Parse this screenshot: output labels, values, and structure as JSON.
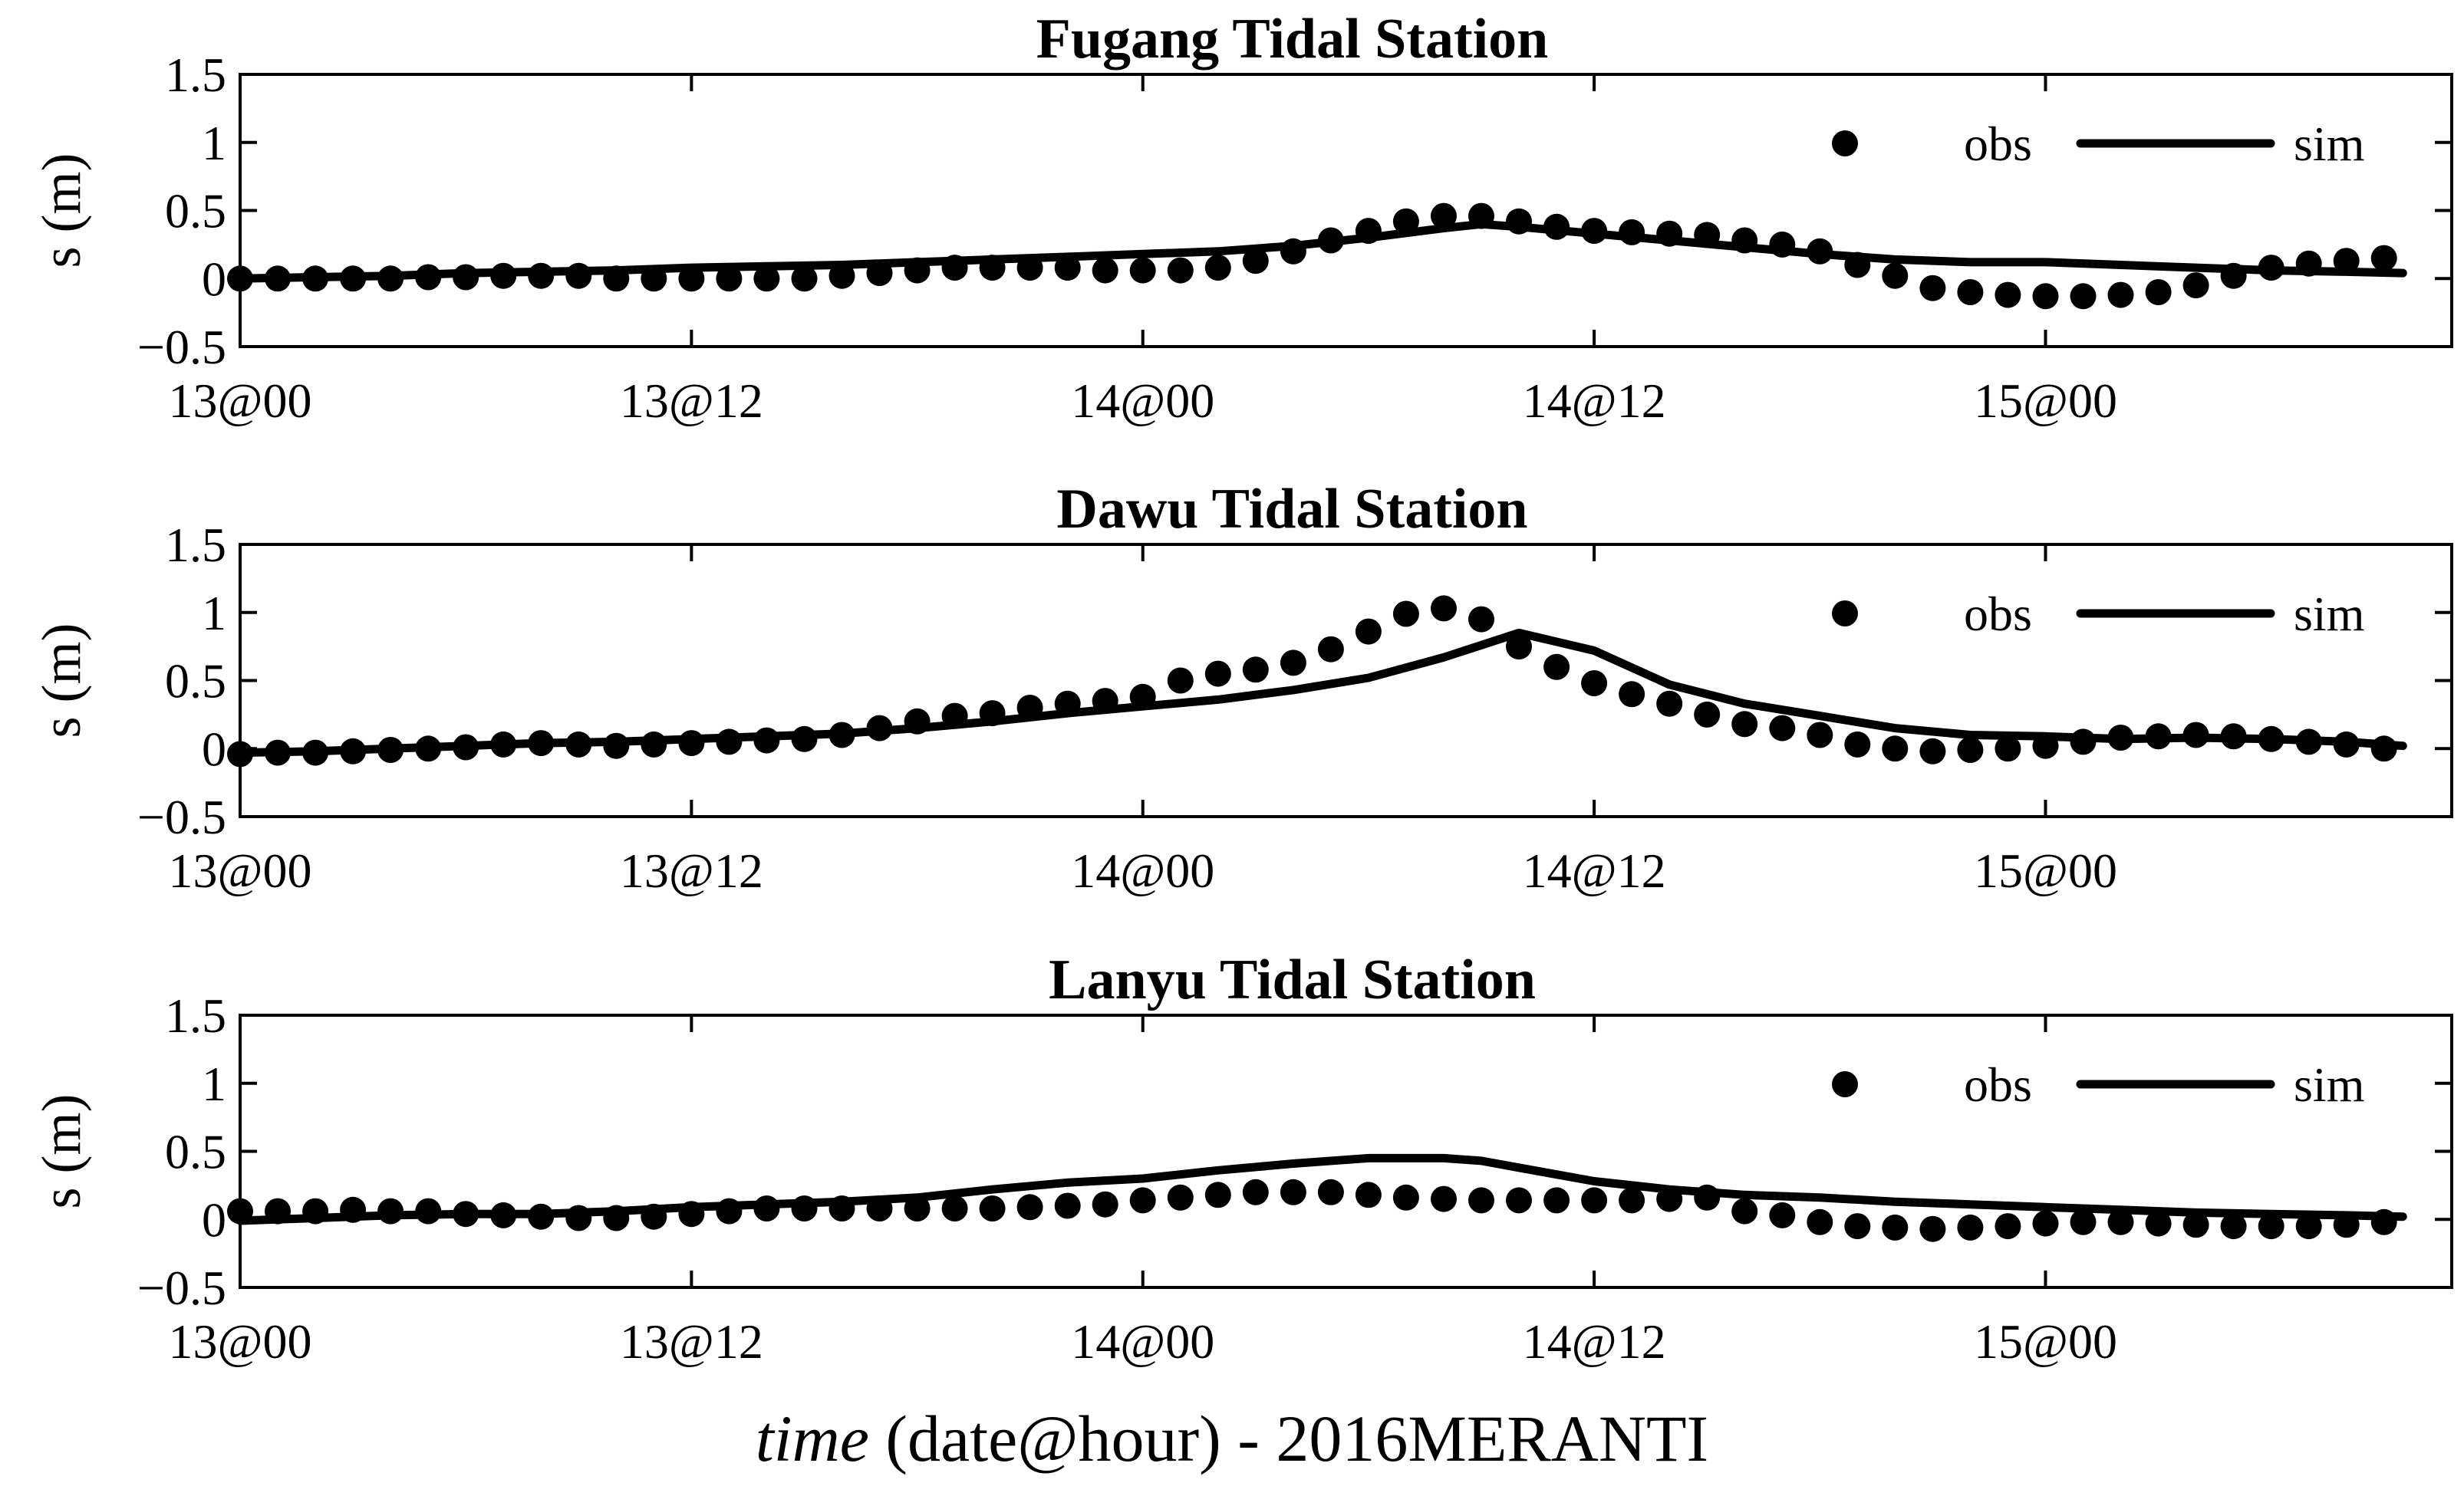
{
  "chart_data": [
    {
      "type": "line",
      "title": "Fugang Tidal Station",
      "ylabel": "s (m)",
      "ylim": [
        -0.5,
        1.5
      ],
      "yticks": [
        "1.5",
        "1",
        "0.5",
        "0",
        "−0.5"
      ],
      "xticks": [
        "13@00",
        "13@12",
        "14@00",
        "14@12",
        "15@00"
      ],
      "legend": {
        "placement": "top-right",
        "obs": "obs",
        "sim": "sim"
      },
      "series": [
        {
          "name": "obs",
          "x": [
            0,
            1,
            2,
            3,
            4,
            5,
            6,
            7,
            8,
            9,
            10,
            11,
            12,
            13,
            14,
            15,
            16,
            17,
            18,
            19,
            20,
            21,
            22,
            23,
            24,
            25,
            26,
            27,
            28,
            29,
            30,
            31,
            32,
            33,
            34,
            35,
            36,
            37,
            38,
            39,
            40,
            41,
            42,
            43,
            44,
            45,
            46,
            47,
            48,
            49,
            50,
            51,
            52,
            53,
            54,
            55,
            56,
            57
          ],
          "values": [
            0.0,
            0.0,
            0.0,
            0.0,
            0.0,
            0.01,
            0.01,
            0.02,
            0.02,
            0.02,
            0.0,
            0.0,
            0.0,
            0.0,
            0.0,
            0.0,
            0.02,
            0.04,
            0.06,
            0.08,
            0.08,
            0.08,
            0.08,
            0.06,
            0.06,
            0.06,
            0.08,
            0.13,
            0.2,
            0.28,
            0.35,
            0.42,
            0.46,
            0.46,
            0.42,
            0.38,
            0.35,
            0.34,
            0.33,
            0.32,
            0.28,
            0.25,
            0.2,
            0.1,
            0.02,
            -0.07,
            -0.1,
            -0.12,
            -0.13,
            -0.13,
            -0.12,
            -0.1,
            -0.05,
            0.02,
            0.08,
            0.11,
            0.13,
            0.15
          ]
        },
        {
          "name": "sim",
          "x": [
            0,
            2,
            4,
            6,
            8,
            10,
            12,
            14,
            16,
            18,
            20,
            22,
            24,
            26,
            28,
            30,
            32,
            33,
            34,
            36,
            38,
            40,
            42,
            44,
            46,
            48,
            50,
            52,
            54,
            56,
            57.5
          ],
          "values": [
            0.0,
            0.01,
            0.02,
            0.04,
            0.05,
            0.06,
            0.08,
            0.09,
            0.1,
            0.12,
            0.14,
            0.16,
            0.18,
            0.2,
            0.24,
            0.3,
            0.37,
            0.4,
            0.38,
            0.33,
            0.28,
            0.23,
            0.18,
            0.14,
            0.12,
            0.12,
            0.1,
            0.08,
            0.06,
            0.05,
            0.04
          ]
        }
      ]
    },
    {
      "type": "line",
      "title": "Dawu Tidal Station",
      "ylabel": "s (m)",
      "ylim": [
        -0.5,
        1.5
      ],
      "yticks": [
        "1.5",
        "1",
        "0.5",
        "0",
        "−0.5"
      ],
      "xticks": [
        "13@00",
        "13@12",
        "14@00",
        "14@12",
        "15@00"
      ],
      "legend": {
        "placement": "top-right",
        "obs": "obs",
        "sim": "sim"
      },
      "series": [
        {
          "name": "obs",
          "x": [
            0,
            1,
            2,
            3,
            4,
            5,
            6,
            7,
            8,
            9,
            10,
            11,
            12,
            13,
            14,
            15,
            16,
            17,
            18,
            19,
            20,
            21,
            22,
            23,
            24,
            25,
            26,
            27,
            28,
            29,
            30,
            31,
            32,
            33,
            34,
            35,
            36,
            37,
            38,
            39,
            40,
            41,
            42,
            43,
            44,
            45,
            46,
            47,
            48,
            49,
            50,
            51,
            52,
            53,
            54,
            55,
            56,
            57
          ],
          "values": [
            -0.04,
            -0.03,
            -0.03,
            -0.02,
            -0.01,
            0.0,
            0.01,
            0.03,
            0.04,
            0.03,
            0.02,
            0.03,
            0.04,
            0.05,
            0.06,
            0.07,
            0.1,
            0.15,
            0.2,
            0.24,
            0.26,
            0.3,
            0.33,
            0.35,
            0.38,
            0.5,
            0.55,
            0.58,
            0.63,
            0.73,
            0.86,
            0.99,
            1.03,
            0.95,
            0.75,
            0.6,
            0.48,
            0.4,
            0.33,
            0.25,
            0.18,
            0.15,
            0.1,
            0.03,
            0.0,
            -0.02,
            -0.01,
            0.0,
            0.02,
            0.05,
            0.08,
            0.09,
            0.1,
            0.09,
            0.07,
            0.05,
            0.03,
            0.0
          ]
        },
        {
          "name": "sim",
          "x": [
            0,
            2,
            4,
            6,
            8,
            10,
            12,
            14,
            16,
            18,
            20,
            22,
            24,
            26,
            28,
            30,
            32,
            33,
            34,
            36,
            38,
            40,
            42,
            44,
            46,
            48,
            50,
            52,
            54,
            56,
            57.5
          ],
          "values": [
            -0.03,
            -0.02,
            0.0,
            0.02,
            0.04,
            0.05,
            0.07,
            0.09,
            0.11,
            0.15,
            0.2,
            0.26,
            0.31,
            0.36,
            0.43,
            0.52,
            0.67,
            0.76,
            0.85,
            0.72,
            0.47,
            0.33,
            0.24,
            0.15,
            0.1,
            0.09,
            0.07,
            0.08,
            0.07,
            0.05,
            0.02
          ]
        }
      ]
    },
    {
      "type": "line",
      "title": "Lanyu Tidal Station",
      "ylabel": "s (m)",
      "ylim": [
        -0.5,
        1.5
      ],
      "yticks": [
        "1.5",
        "1",
        "0.5",
        "0",
        "−0.5"
      ],
      "xticks": [
        "13@00",
        "13@12",
        "14@00",
        "14@12",
        "15@00"
      ],
      "legend": {
        "placement": "top-right",
        "obs": "obs",
        "sim": "sim"
      },
      "series": [
        {
          "name": "obs",
          "x": [
            0,
            1,
            2,
            3,
            4,
            5,
            6,
            7,
            8,
            9,
            10,
            11,
            12,
            13,
            14,
            15,
            16,
            17,
            18,
            19,
            20,
            21,
            22,
            23,
            24,
            25,
            26,
            27,
            28,
            29,
            30,
            31,
            32,
            33,
            34,
            35,
            36,
            37,
            38,
            39,
            40,
            41,
            42,
            43,
            44,
            45,
            46,
            47,
            48,
            49,
            50,
            51,
            52,
            53,
            54,
            55,
            56,
            57
          ],
          "values": [
            0.06,
            0.06,
            0.06,
            0.07,
            0.06,
            0.06,
            0.04,
            0.03,
            0.02,
            0.01,
            0.01,
            0.02,
            0.04,
            0.06,
            0.08,
            0.08,
            0.08,
            0.08,
            0.08,
            0.08,
            0.08,
            0.09,
            0.1,
            0.11,
            0.14,
            0.16,
            0.18,
            0.2,
            0.2,
            0.2,
            0.18,
            0.16,
            0.15,
            0.14,
            0.14,
            0.14,
            0.14,
            0.14,
            0.15,
            0.16,
            0.06,
            0.03,
            -0.02,
            -0.05,
            -0.06,
            -0.07,
            -0.06,
            -0.05,
            -0.03,
            -0.02,
            -0.02,
            -0.03,
            -0.04,
            -0.05,
            -0.05,
            -0.05,
            -0.04,
            -0.02
          ]
        },
        {
          "name": "sim",
          "x": [
            0,
            2,
            4,
            6,
            8,
            10,
            12,
            14,
            16,
            18,
            20,
            22,
            24,
            26,
            28,
            30,
            32,
            33,
            34,
            36,
            38,
            40,
            42,
            44,
            46,
            48,
            50,
            52,
            54,
            56,
            57.5
          ],
          "values": [
            -0.01,
            0.01,
            0.03,
            0.04,
            0.04,
            0.06,
            0.09,
            0.11,
            0.13,
            0.16,
            0.22,
            0.27,
            0.3,
            0.36,
            0.41,
            0.45,
            0.45,
            0.43,
            0.38,
            0.28,
            0.22,
            0.18,
            0.16,
            0.13,
            0.11,
            0.09,
            0.07,
            0.05,
            0.04,
            0.03,
            0.02
          ]
        }
      ]
    }
  ],
  "xlabel": {
    "italic": "time",
    "rest": " (date@hour) - 2016MERANTI"
  }
}
